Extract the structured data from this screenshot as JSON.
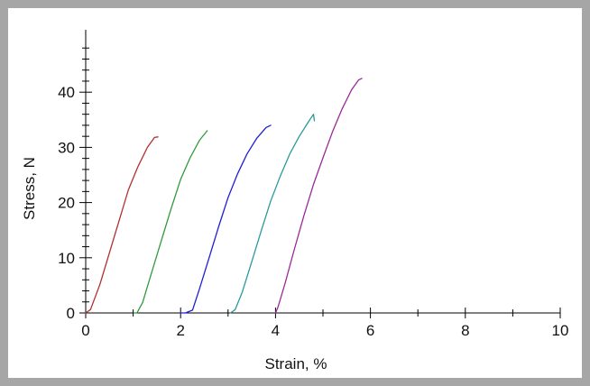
{
  "chart_data": {
    "type": "line",
    "xlabel": "Strain, %",
    "ylabel": "Stress, N",
    "xlim": [
      0,
      10
    ],
    "ylim": [
      0,
      48
    ],
    "x_ticks": [
      "0",
      "2",
      "4",
      "6",
      "8",
      "10"
    ],
    "y_ticks": [
      "0",
      "10",
      "20",
      "30",
      "40"
    ],
    "grid": false,
    "series": [
      {
        "color": "#b03030",
        "points": [
          [
            0,
            0
          ],
          [
            0.1,
            0.6
          ],
          [
            0.3,
            5.2
          ],
          [
            0.5,
            10.9
          ],
          [
            0.7,
            16.6
          ],
          [
            0.9,
            22.3
          ],
          [
            1.1,
            26.5
          ],
          [
            1.3,
            30.0
          ],
          [
            1.45,
            31.8
          ],
          [
            1.52,
            31.9
          ]
        ]
      },
      {
        "color": "#2e9a3a",
        "points": [
          [
            1.02,
            0
          ],
          [
            1.08,
            0
          ],
          [
            1.2,
            1.9
          ],
          [
            1.4,
            7.6
          ],
          [
            1.6,
            13.3
          ],
          [
            1.8,
            18.9
          ],
          [
            2.0,
            24.2
          ],
          [
            2.2,
            28.1
          ],
          [
            2.4,
            31.3
          ],
          [
            2.56,
            33.0
          ]
        ]
      },
      {
        "color": "#1f1fd6",
        "points": [
          [
            2.0,
            0
          ],
          [
            2.1,
            0
          ],
          [
            2.25,
            0.5
          ],
          [
            2.4,
            4.4
          ],
          [
            2.6,
            10.0
          ],
          [
            2.8,
            15.6
          ],
          [
            3.0,
            20.9
          ],
          [
            3.2,
            25.2
          ],
          [
            3.4,
            28.8
          ],
          [
            3.6,
            31.6
          ],
          [
            3.8,
            33.6
          ],
          [
            3.9,
            34.0
          ]
        ]
      },
      {
        "color": "#2a9a9a",
        "points": [
          [
            3.05,
            0
          ],
          [
            3.15,
            0.6
          ],
          [
            3.3,
            3.8
          ],
          [
            3.5,
            9.3
          ],
          [
            3.7,
            14.9
          ],
          [
            3.9,
            20.3
          ],
          [
            4.1,
            24.8
          ],
          [
            4.3,
            28.8
          ],
          [
            4.5,
            32.0
          ],
          [
            4.7,
            34.7
          ],
          [
            4.8,
            36.0
          ],
          [
            4.82,
            34.8
          ]
        ]
      },
      {
        "color": "#9a2a9a",
        "points": [
          [
            4.0,
            0
          ],
          [
            4.05,
            1.0
          ],
          [
            4.2,
            5.3
          ],
          [
            4.4,
            11.6
          ],
          [
            4.6,
            17.7
          ],
          [
            4.8,
            23.3
          ],
          [
            5.0,
            28.1
          ],
          [
            5.2,
            32.8
          ],
          [
            5.4,
            36.9
          ],
          [
            5.6,
            40.4
          ],
          [
            5.75,
            42.2
          ],
          [
            5.82,
            42.5
          ]
        ]
      }
    ]
  }
}
